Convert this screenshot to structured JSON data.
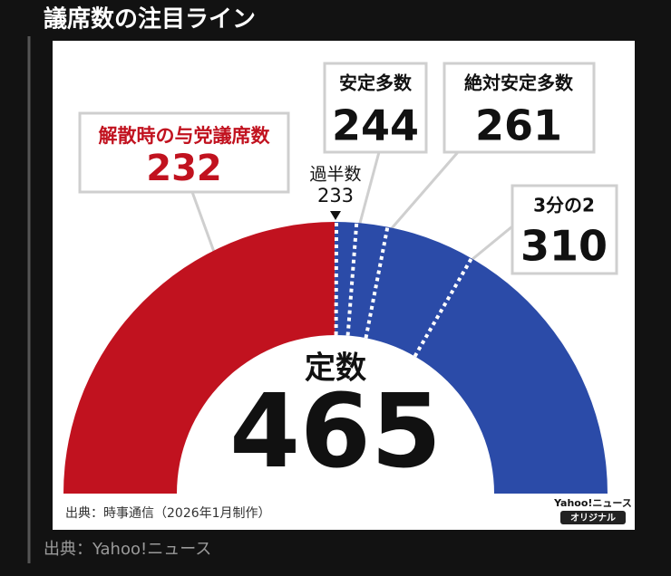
{
  "title": "議席数の注目ライン",
  "source": "出典：Yahoo!ニュース",
  "chart_data": {
    "type": "half-donut",
    "total_label": "定数",
    "total": 465,
    "segments": [
      {
        "name": "解散時の与党議席数",
        "value": 232,
        "color": "#c1121f"
      },
      {
        "value": 233,
        "color": "#2b4ba8"
      }
    ],
    "thresholds": [
      {
        "name": "過半数",
        "value": 233
      },
      {
        "name": "安定多数",
        "value": 244
      },
      {
        "name": "絶対安定多数",
        "value": 261
      },
      {
        "name": "3分の2",
        "value": 310
      }
    ],
    "note": "出典：時事通信（2026年1月制作）",
    "brand": "Yahoo!ニュース",
    "badge": "オリジナル"
  }
}
